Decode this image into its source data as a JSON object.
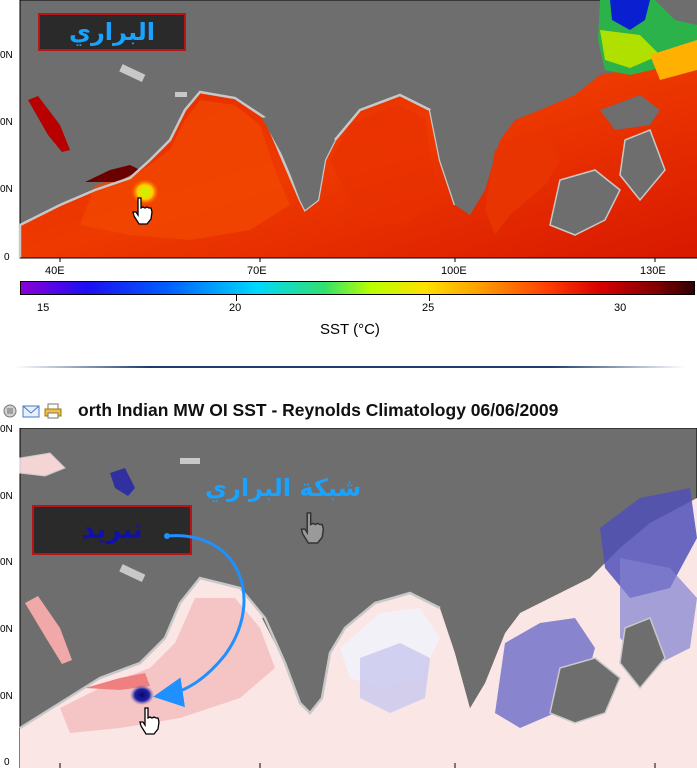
{
  "top_map": {
    "badge_text": "البراري",
    "y_labels": [
      "0N",
      "0N",
      "0N",
      "0"
    ],
    "x_labels": [
      "40E",
      "70E",
      "100E",
      "130E"
    ]
  },
  "colorbar": {
    "ticks": [
      "15",
      "20",
      "25",
      "30"
    ],
    "label": "SST (°C)",
    "colors": [
      "#8a00d8",
      "#1a10f0",
      "#0060ff",
      "#00d8ff",
      "#30e070",
      "#b8ff00",
      "#ffe000",
      "#ffa000",
      "#ff4000",
      "#d80000",
      "#7a0000",
      "#300000"
    ]
  },
  "bottom_map": {
    "title": "orth Indian MW OI SST  - Reynolds Climatology 06/06/2009",
    "y_labels": [
      "0N",
      "0N",
      "0N",
      "0N",
      "0N",
      "0N",
      "0"
    ],
    "cooling_label": "تبريد",
    "watermark": "شبكة البراري"
  },
  "toolbar": {
    "icons": [
      "print-icon",
      "email-icon",
      "printer-icon"
    ]
  },
  "colors": {
    "land": "#6e6e6e",
    "coast": "#c8c8c8",
    "badge_bg": "#2a2a2a",
    "badge_border": "#b81616",
    "badge_text": "#1aa2ff",
    "cooling_text": "#1010b0",
    "arrow": "#1e90ff"
  }
}
